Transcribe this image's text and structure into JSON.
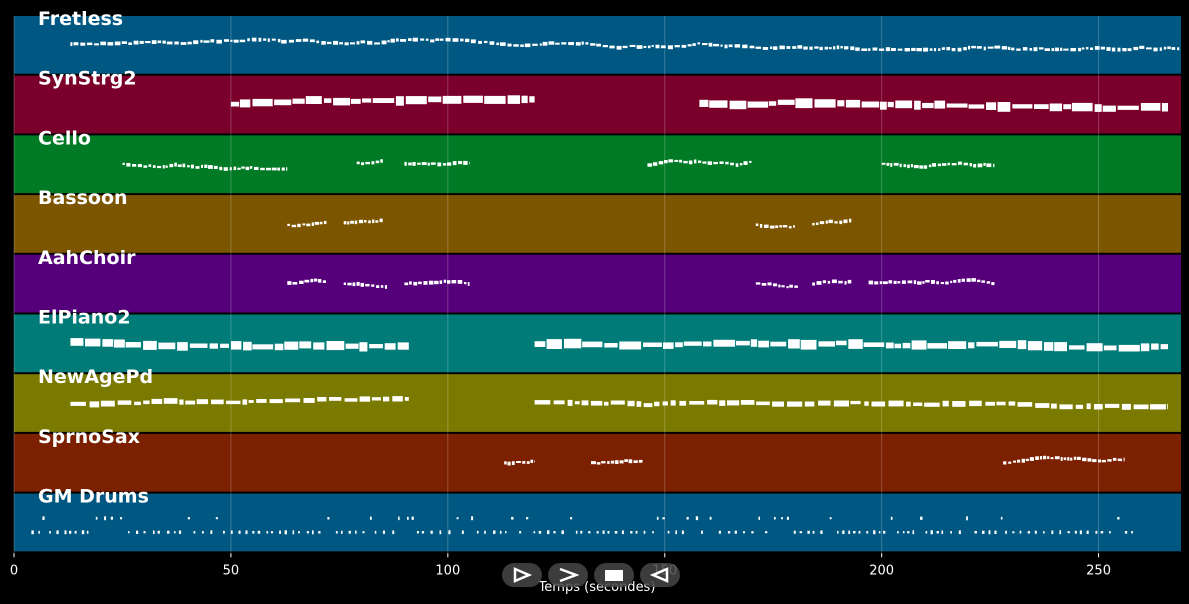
{
  "chart_data": {
    "type": "piano-roll",
    "xlabel": "Temps (secondes)",
    "xlim": [
      0,
      269
    ],
    "xticks": [
      0,
      50,
      100,
      150,
      200,
      250
    ],
    "grid": true,
    "tracks": [
      {
        "name": "Fretless",
        "color": "#005882",
        "note_size": "tiny",
        "segments": [
          [
            13,
            269
          ]
        ]
      },
      {
        "name": "SynStrg2",
        "color": "#7a002b",
        "note_size": "large",
        "segments": [
          [
            50,
            120
          ],
          [
            158,
            266
          ]
        ]
      },
      {
        "name": "Cello",
        "color": "#007a25",
        "note_size": "small",
        "segments": [
          [
            25,
            63
          ],
          [
            79,
            85
          ],
          [
            90,
            105
          ],
          [
            146,
            170
          ],
          [
            200,
            226
          ]
        ]
      },
      {
        "name": "Bassoon",
        "color": "#7b5500",
        "note_size": "small",
        "segments": [
          [
            63,
            72
          ],
          [
            76,
            85
          ],
          [
            171,
            180
          ],
          [
            184,
            193
          ]
        ]
      },
      {
        "name": "AahChoir",
        "color": "#55007a",
        "note_size": "small",
        "segments": [
          [
            63,
            72
          ],
          [
            76,
            86
          ],
          [
            90,
            105
          ],
          [
            171,
            181
          ],
          [
            184,
            193
          ],
          [
            197,
            226
          ]
        ]
      },
      {
        "name": "ElPiano2",
        "color": "#007b78",
        "note_size": "large",
        "segments": [
          [
            13,
            91
          ],
          [
            120,
            266
          ]
        ]
      },
      {
        "name": "NewAgePd",
        "color": "#7b7a00",
        "note_size": "medium",
        "segments": [
          [
            13,
            91
          ],
          [
            120,
            266
          ]
        ]
      },
      {
        "name": "SprnoSax",
        "color": "#7b2000",
        "note_size": "small",
        "segments": [
          [
            113,
            120
          ],
          [
            133,
            145
          ],
          [
            228,
            256
          ]
        ]
      },
      {
        "name": "GM Drums",
        "color": "#005882",
        "note_size": "drums",
        "segments": [
          [
            4,
            258
          ]
        ]
      }
    ]
  },
  "controls": [
    {
      "name": "play-button",
      "icon": "play-icon"
    },
    {
      "name": "forward-button",
      "icon": "forward-icon"
    },
    {
      "name": "stop-button",
      "icon": "stop-icon"
    },
    {
      "name": "back-button",
      "icon": "back-icon"
    }
  ]
}
